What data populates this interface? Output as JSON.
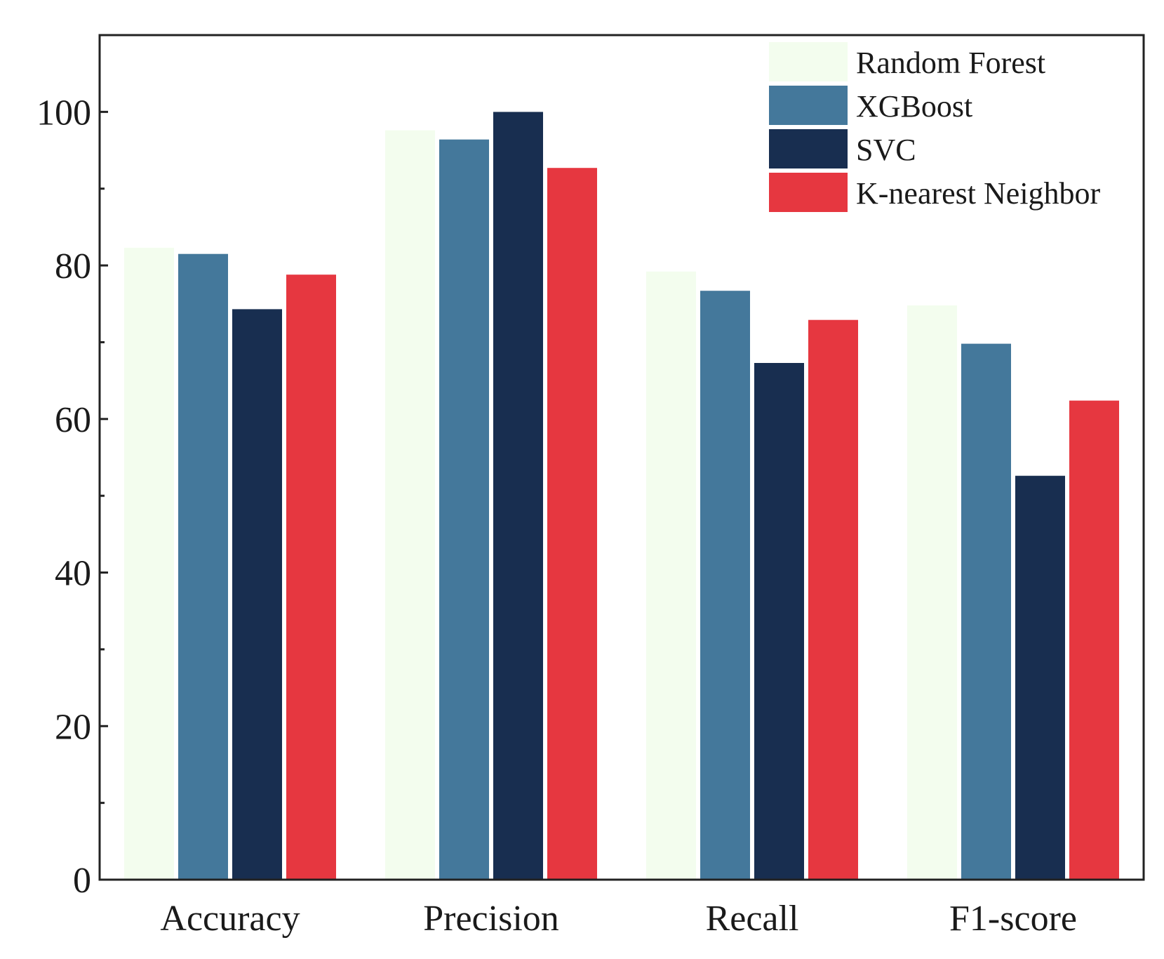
{
  "chart_data": {
    "type": "bar",
    "title": "",
    "xlabel": "",
    "ylabel": "",
    "categories": [
      "Accuracy",
      "Precision",
      "Recall",
      "F1-score"
    ],
    "series": [
      {
        "name": "Random Forest",
        "color": "#f3fdee",
        "values": [
          82.3,
          97.6,
          79.2,
          74.8
        ]
      },
      {
        "name": "XGBoost",
        "color": "#44789b",
        "values": [
          81.5,
          96.4,
          76.7,
          69.8
        ]
      },
      {
        "name": "SVC",
        "color": "#182e50",
        "values": [
          74.3,
          100.0,
          67.3,
          52.6
        ]
      },
      {
        "name": "K-nearest Neighbor",
        "color": "#e63740",
        "values": [
          78.8,
          92.7,
          72.9,
          62.4
        ]
      }
    ],
    "ylim": [
      0,
      110
    ],
    "y_ticks": [
      0,
      20,
      40,
      60,
      80,
      100
    ],
    "y_minor_ticks": [
      10,
      30,
      50,
      70,
      90
    ],
    "grid": false,
    "legend_position": "top-right"
  }
}
